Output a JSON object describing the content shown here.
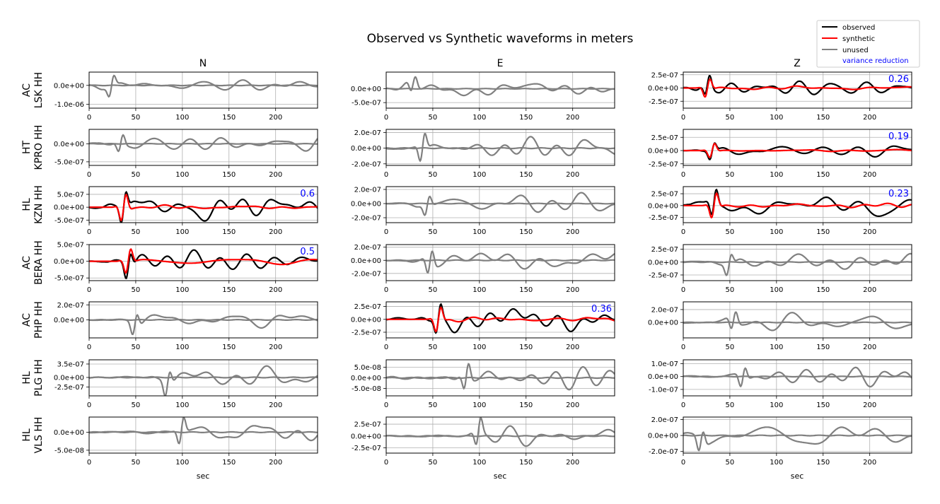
{
  "figure": {
    "title": "Observed vs Synthetic waveforms in meters",
    "xlabel": "sec",
    "columns": [
      "N",
      "E",
      "Z"
    ],
    "legend": {
      "placement": "top-right",
      "entries": [
        {
          "label": "observed",
          "color": "#000000"
        },
        {
          "label": "synthetic",
          "color": "#ff0000"
        },
        {
          "label": "unused",
          "color": "#808080"
        },
        {
          "label": "variance reduction",
          "color": "#0000ff"
        }
      ]
    },
    "stations": [
      {
        "network": "AC",
        "station": "LSK HH"
      },
      {
        "network": "HT",
        "station": "KPRO HH"
      },
      {
        "network": "HL",
        "station": "KZN HH"
      },
      {
        "network": "AC",
        "station": "BERA HH"
      },
      {
        "network": "AC",
        "station": "PHP HH"
      },
      {
        "network": "HL",
        "station": "PLG HH"
      },
      {
        "network": "HL",
        "station": "VLS HH"
      }
    ]
  },
  "chart_data": {
    "type": "line",
    "xlim": [
      0,
      245
    ],
    "xticks": [
      0,
      50,
      100,
      150,
      200
    ],
    "grid": true,
    "colors": {
      "observed": "#000000",
      "synthetic": "#ff0000",
      "unused": "#808080",
      "variance_reduction": "#0000ff"
    },
    "panels": [
      [
        {
          "component": "N",
          "status": "unused",
          "ylim": [
            -1.2e-06,
            7e-07
          ],
          "yticks": [
            {
              "v": 0,
              "label": "0.0e+00"
            },
            {
              "v": -1e-06,
              "label": "-1.0e-06"
            }
          ],
          "vr": null,
          "amp": 6e-07,
          "event": 20
        },
        {
          "component": "E",
          "status": "unused",
          "ylim": [
            -7e-07,
            6e-07
          ],
          "yticks": [
            {
              "v": 0,
              "label": "0.0e+00"
            },
            {
              "v": -5e-07,
              "label": "-5.0e-07"
            }
          ],
          "vr": null,
          "amp": 4e-07,
          "event": 25
        },
        {
          "component": "Z",
          "status": "used",
          "ylim": [
            -3.8e-07,
            3e-07
          ],
          "yticks": [
            {
              "v": 2.5e-07,
              "label": "2.5e-07"
            },
            {
              "v": 0,
              "label": "0.0e+00"
            },
            {
              "v": -2.5e-07,
              "label": "-2.5e-07"
            }
          ],
          "vr": "0.26",
          "amp": 2.3e-07,
          "event": 22
        }
      ],
      [
        {
          "component": "N",
          "status": "unused",
          "ylim": [
            -6e-07,
            4e-07
          ],
          "yticks": [
            {
              "v": 0,
              "label": "0.0e+00"
            },
            {
              "v": -5e-07,
              "label": "-5.0e-07"
            }
          ],
          "vr": null,
          "amp": 3e-07,
          "event": 30
        },
        {
          "component": "E",
          "status": "unused",
          "ylim": [
            -2.2e-07,
            2.4e-07
          ],
          "yticks": [
            {
              "v": 2e-07,
              "label": "2.0e-07"
            },
            {
              "v": 0,
              "label": "0.0e+00"
            },
            {
              "v": -2e-07,
              "label": "-2.0e-07"
            }
          ],
          "vr": null,
          "amp": 2.2e-07,
          "event": 35
        },
        {
          "component": "Z",
          "status": "used",
          "ylim": [
            -2.8e-07,
            4e-07
          ],
          "yticks": [
            {
              "v": 2.5e-07,
              "label": "2.5e-07"
            },
            {
              "v": 0,
              "label": "0.0e+00"
            },
            {
              "v": -2.5e-07,
              "label": "-2.5e-07"
            }
          ],
          "vr": "0.19",
          "amp": 1.8e-07,
          "event": 27
        }
      ],
      [
        {
          "component": "N",
          "status": "used",
          "ylim": [
            -6e-07,
            8e-07
          ],
          "yticks": [
            {
              "v": 5e-07,
              "label": "5.0e-07"
            },
            {
              "v": 0,
              "label": "0.0e+00"
            },
            {
              "v": -5e-07,
              "label": "-5.0e-07"
            }
          ],
          "vr": "0.6",
          "amp": 7e-07,
          "event": 33
        },
        {
          "component": "E",
          "status": "unused",
          "ylim": [
            -2.7e-07,
            2.4e-07
          ],
          "yticks": [
            {
              "v": 2e-07,
              "label": "2.0e-07"
            },
            {
              "v": 0,
              "label": "0.0e+00"
            },
            {
              "v": -2e-07,
              "label": "-2.0e-07"
            }
          ],
          "vr": null,
          "amp": 1.6e-07,
          "event": 40
        },
        {
          "component": "Z",
          "status": "used",
          "ylim": [
            -3.6e-07,
            4e-07
          ],
          "yticks": [
            {
              "v": 2.5e-07,
              "label": "2.5e-07"
            },
            {
              "v": 0,
              "label": "0.0e+00"
            },
            {
              "v": -2.5e-07,
              "label": "-2.5e-07"
            }
          ],
          "vr": "0.23",
          "amp": 3.5e-07,
          "event": 29
        }
      ],
      [
        {
          "component": "N",
          "status": "used",
          "ylim": [
            -5.8e-07,
            5e-07
          ],
          "yticks": [
            {
              "v": 5e-07,
              "label": "5.0e-07"
            },
            {
              "v": 0,
              "label": "0.0e+00"
            },
            {
              "v": -5e-07,
              "label": "-5.0e-07"
            }
          ],
          "vr": "0.5",
          "amp": 4.8e-07,
          "event": 38
        },
        {
          "component": "E",
          "status": "unused",
          "ylim": [
            -3.1e-07,
            2.4e-07
          ],
          "yticks": [
            {
              "v": 2e-07,
              "label": "2.0e-07"
            },
            {
              "v": 0,
              "label": "0.0e+00"
            },
            {
              "v": -2e-07,
              "label": "-2.0e-07"
            }
          ],
          "vr": null,
          "amp": 2.5e-07,
          "event": 43
        },
        {
          "component": "Z",
          "status": "unused",
          "ylim": [
            -3.6e-07,
            3.4e-07
          ],
          "yticks": [
            {
              "v": 2.5e-07,
              "label": "2.5e-07"
            },
            {
              "v": 0,
              "label": "0.0e+00"
            },
            {
              "v": -2.5e-07,
              "label": "-2.5e-07"
            }
          ],
          "vr": null,
          "amp": 2.3e-07,
          "event": 45
        }
      ],
      [
        {
          "component": "N",
          "status": "unused",
          "ylim": [
            -2.4e-07,
            2.4e-07
          ],
          "yticks": [
            {
              "v": 2e-07,
              "label": "2.0e-07"
            },
            {
              "v": 0,
              "label": "0.0e+00"
            }
          ],
          "vr": null,
          "amp": 1.8e-07,
          "event": 45
        },
        {
          "component": "E",
          "status": "used",
          "ylim": [
            -3.6e-07,
            3.4e-07
          ],
          "yticks": [
            {
              "v": 2.5e-07,
              "label": "2.5e-07"
            },
            {
              "v": 0,
              "label": "0.0e+00"
            },
            {
              "v": -2.5e-07,
              "label": "-2.5e-07"
            }
          ],
          "vr": "0.36",
          "amp": 3.2e-07,
          "event": 52
        },
        {
          "component": "Z",
          "status": "unused",
          "ylim": [
            -2.4e-07,
            3.2e-07
          ],
          "yticks": [
            {
              "v": 2e-07,
              "label": "2.0e-07"
            },
            {
              "v": 0,
              "label": "0.0e+00"
            }
          ],
          "vr": null,
          "amp": 1.9e-07,
          "event": 50
        }
      ],
      [
        {
          "component": "N",
          "status": "unused",
          "ylim": [
            -4.8e-07,
            4.6e-07
          ],
          "yticks": [
            {
              "v": 3.5e-07,
              "label": "3.5e-07"
            },
            {
              "v": 0,
              "label": "0.0e+00"
            },
            {
              "v": -2.5e-07,
              "label": "-2.5e-07"
            }
          ],
          "vr": null,
          "amp": 4e-07,
          "event": 80
        },
        {
          "component": "E",
          "status": "unused",
          "ylim": [
            -8.5e-08,
            8.5e-08
          ],
          "yticks": [
            {
              "v": 5e-08,
              "label": "5.0e-08"
            },
            {
              "v": 0,
              "label": "0.0e+00"
            },
            {
              "v": -5e-08,
              "label": "-5.0e-08"
            }
          ],
          "vr": null,
          "amp": 8e-08,
          "event": 82
        },
        {
          "component": "Z",
          "status": "unused",
          "ylim": [
            -1.5e-07,
            1.3e-07
          ],
          "yticks": [
            {
              "v": 1e-07,
              "label": "1.0e-07"
            },
            {
              "v": 0,
              "label": "0.0e+00"
            },
            {
              "v": -1e-07,
              "label": "-1.0e-07"
            }
          ],
          "vr": null,
          "amp": 1e-07,
          "event": 60
        }
      ],
      [
        {
          "component": "N",
          "status": "unused",
          "ylim": [
            -5.8e-08,
            4.2e-08
          ],
          "yticks": [
            {
              "v": 0,
              "label": "0.0e+00"
            },
            {
              "v": -5e-08,
              "label": "-5.0e-08"
            }
          ],
          "vr": null,
          "amp": 4.5e-08,
          "event": 95
        },
        {
          "component": "E",
          "status": "unused",
          "ylim": [
            -3.6e-07,
            4e-07
          ],
          "yticks": [
            {
              "v": 2.5e-07,
              "label": "2.5e-07"
            },
            {
              "v": 0,
              "label": "0.0e+00"
            },
            {
              "v": -2.5e-07,
              "label": "-2.5e-07"
            }
          ],
          "vr": null,
          "amp": 3.5e-07,
          "event": 95
        },
        {
          "component": "Z",
          "status": "unused",
          "ylim": [
            -2.2e-07,
            2.3e-07
          ],
          "yticks": [
            {
              "v": 2e-07,
              "label": "2.0e-07"
            },
            {
              "v": 0,
              "label": "0.0e+00"
            },
            {
              "v": -2e-07,
              "label": "-2.0e-07"
            }
          ],
          "vr": null,
          "amp": 1.8e-07,
          "event": 15
        }
      ]
    ]
  }
}
